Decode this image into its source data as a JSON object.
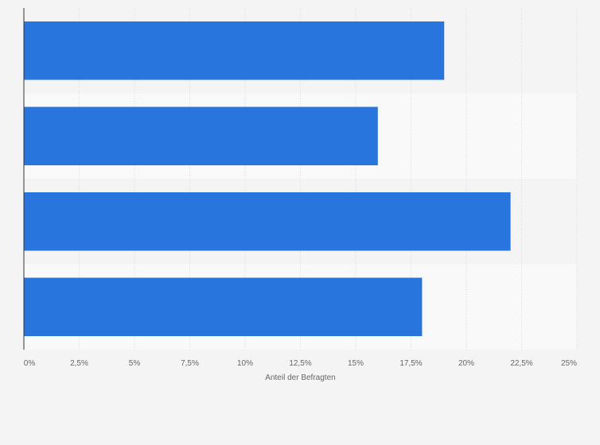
{
  "chart_data": {
    "type": "bar",
    "orientation": "horizontal",
    "categories": [
      "",
      "",
      "",
      ""
    ],
    "values": [
      19,
      16,
      22,
      18
    ],
    "xlabel": "Anteil der Befragten",
    "ylabel": "",
    "xlim": [
      0,
      25
    ],
    "xticks": [
      0,
      2.5,
      5,
      7.5,
      10,
      12.5,
      15,
      17.5,
      20,
      22.5,
      25
    ],
    "xtick_labels": [
      "0%",
      "2,5%",
      "5%",
      "7,5%",
      "10%",
      "12,5%",
      "15%",
      "17,5%",
      "20%",
      "22,5%",
      "25%"
    ],
    "grid": true,
    "bar_color": "#2775dd"
  }
}
